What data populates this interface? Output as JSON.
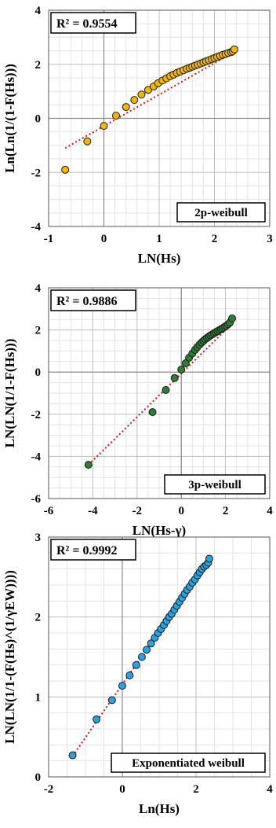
{
  "chart_data": [
    {
      "type": "scatter",
      "xlabel": "LN(Hs)",
      "ylabel": "Ln(Ln(1/(1-F(Hs)))",
      "xlim": [
        -1,
        3
      ],
      "ylim": [
        -4,
        4
      ],
      "xticks": [
        "-1",
        "0",
        "1",
        "2",
        "3"
      ],
      "yticks": [
        "-4",
        "-2",
        "0",
        "2",
        "4"
      ],
      "grid": true,
      "r2_label": "R² = 0.9554",
      "legend_label": "2p-weibull",
      "legend_position": "bottom-right",
      "marker_color": "#f2b705",
      "trend_color": "#e01010",
      "trendline": {
        "x1": -0.7,
        "y1": -1.1,
        "x2": 2.35,
        "y2": 2.45
      },
      "series": [
        {
          "x": [
            -0.7,
            -0.3,
            0.0,
            0.22,
            0.4,
            0.55,
            0.68,
            0.8,
            0.9,
            0.98,
            1.06,
            1.13,
            1.2,
            1.26,
            1.32,
            1.38,
            1.44,
            1.5,
            1.55,
            1.6,
            1.65,
            1.7,
            1.75,
            1.8,
            1.85,
            1.9,
            1.95,
            2.0,
            2.05,
            2.1,
            2.15,
            2.2,
            2.25,
            2.3,
            2.33,
            2.36
          ],
          "y": [
            -1.9,
            -0.85,
            -0.28,
            0.1,
            0.42,
            0.68,
            0.88,
            1.05,
            1.18,
            1.3,
            1.4,
            1.48,
            1.56,
            1.62,
            1.68,
            1.73,
            1.78,
            1.83,
            1.87,
            1.91,
            1.95,
            1.99,
            2.03,
            2.07,
            2.11,
            2.15,
            2.19,
            2.23,
            2.27,
            2.31,
            2.35,
            2.38,
            2.42,
            2.45,
            2.48,
            2.55
          ]
        }
      ]
    },
    {
      "type": "scatter",
      "xlabel": "LN(Hs-γ)",
      "ylabel": "LN(LN(1/1-F(Hs)))",
      "xlim": [
        -6,
        4
      ],
      "ylim": [
        -6,
        4
      ],
      "xticks": [
        "-6",
        "-4",
        "-2",
        "0",
        "2",
        "4"
      ],
      "yticks": [
        "-6",
        "-4",
        "-2",
        "0",
        "2",
        "4"
      ],
      "grid": true,
      "r2_label": "R² = 0.9886",
      "legend_label": "3p-weibull",
      "legend_position": "bottom-right",
      "marker_color": "#2e7d32",
      "trend_color": "#e01010",
      "trendline": {
        "x1": -4.2,
        "y1": -4.4,
        "x2": 2.3,
        "y2": 2.3
      },
      "series": [
        {
          "x": [
            -4.2,
            -1.3,
            -0.7,
            -0.3,
            0.0,
            0.2,
            0.35,
            0.5,
            0.62,
            0.72,
            0.82,
            0.92,
            1.0,
            1.08,
            1.16,
            1.24,
            1.32,
            1.4,
            1.48,
            1.56,
            1.64,
            1.72,
            1.8,
            1.88,
            1.96,
            2.04,
            2.12,
            2.2,
            2.3
          ],
          "y": [
            -4.4,
            -1.9,
            -0.85,
            -0.28,
            0.12,
            0.42,
            0.68,
            0.88,
            1.05,
            1.18,
            1.3,
            1.4,
            1.48,
            1.56,
            1.62,
            1.68,
            1.74,
            1.79,
            1.84,
            1.89,
            1.94,
            1.99,
            2.04,
            2.09,
            2.15,
            2.2,
            2.27,
            2.35,
            2.55
          ]
        }
      ]
    },
    {
      "type": "scatter",
      "xlabel": "Ln(Hs)",
      "ylabel": "LN(LN(1/1-(F(Hs)^(1/γEW))))",
      "xlim": [
        -2,
        4
      ],
      "ylim": [
        0,
        3
      ],
      "xticks": [
        "-2",
        "0",
        "2",
        "4"
      ],
      "yticks": [
        "0",
        "1",
        "2",
        "3"
      ],
      "grid": true,
      "r2_label": "R² = 0.9992",
      "legend_label": "Exponentiated weibull",
      "legend_position": "bottom-right",
      "marker_color": "#29a3e0",
      "trend_color": "#e01010",
      "trendline": {
        "x1": -1.35,
        "y1": 0.26,
        "x2": 2.35,
        "y2": 2.72
      },
      "series": [
        {
          "x": [
            -1.35,
            -0.7,
            -0.28,
            0.0,
            0.2,
            0.38,
            0.53,
            0.66,
            0.78,
            0.88,
            0.97,
            1.05,
            1.13,
            1.2,
            1.27,
            1.34,
            1.41,
            1.48,
            1.55,
            1.62,
            1.69,
            1.76,
            1.83,
            1.9,
            1.97,
            2.04,
            2.1,
            2.16,
            2.22,
            2.28,
            2.33,
            2.36
          ],
          "y": [
            0.27,
            0.72,
            0.96,
            1.14,
            1.27,
            1.4,
            1.5,
            1.59,
            1.67,
            1.74,
            1.8,
            1.85,
            1.9,
            1.95,
            2.0,
            2.04,
            2.09,
            2.14,
            2.19,
            2.24,
            2.29,
            2.34,
            2.38,
            2.43,
            2.47,
            2.52,
            2.56,
            2.6,
            2.63,
            2.65,
            2.68,
            2.73
          ]
        }
      ]
    }
  ]
}
